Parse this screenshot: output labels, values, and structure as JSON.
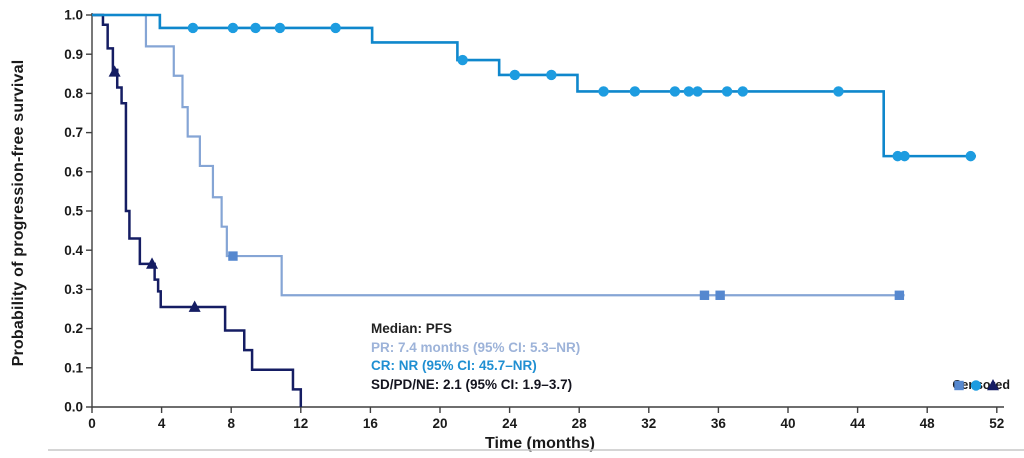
{
  "chart_data": {
    "type": "line",
    "subtype": "kaplan-meier-step",
    "title": "",
    "xlabel": "Time (months)",
    "ylabel": "Probability of progression-free survival",
    "xlim": [
      0,
      52
    ],
    "ylim": [
      0.0,
      1.0
    ],
    "grid": false,
    "xticks": [
      0,
      4,
      8,
      12,
      16,
      20,
      24,
      28,
      32,
      36,
      40,
      44,
      48,
      52
    ],
    "ytick_labels": [
      "0.0",
      "0.1",
      "0.2",
      "0.3",
      "0.4",
      "0.5",
      "0.6",
      "0.7",
      "0.8",
      "0.9",
      "1.0"
    ],
    "axis_color": "#3f3f3f",
    "series": [
      {
        "name": "PR",
        "color": "#85a5d5",
        "marker": "square",
        "marker_color": "#5688cf",
        "line_width": 2.2,
        "steps": [
          [
            0,
            1.0
          ],
          [
            3.1,
            1.0
          ],
          [
            3.1,
            0.92
          ],
          [
            4.7,
            0.92
          ],
          [
            4.7,
            0.845
          ],
          [
            5.2,
            0.845
          ],
          [
            5.2,
            0.765
          ],
          [
            5.5,
            0.765
          ],
          [
            5.5,
            0.69
          ],
          [
            6.2,
            0.69
          ],
          [
            6.2,
            0.615
          ],
          [
            6.95,
            0.615
          ],
          [
            6.95,
            0.535
          ],
          [
            7.45,
            0.535
          ],
          [
            7.45,
            0.46
          ],
          [
            7.75,
            0.46
          ],
          [
            7.75,
            0.385
          ],
          [
            10.9,
            0.385
          ],
          [
            10.9,
            0.285
          ],
          [
            46.7,
            0.285
          ]
        ],
        "censors": [
          [
            8.1,
            0.385
          ],
          [
            35.2,
            0.285
          ],
          [
            36.1,
            0.285
          ],
          [
            46.4,
            0.285
          ]
        ]
      },
      {
        "name": "SD/PD/NE",
        "color": "#151d63",
        "marker": "triangle",
        "marker_color": "#151d63",
        "line_width": 2.5,
        "steps": [
          [
            0,
            1.0
          ],
          [
            0.63,
            1.0
          ],
          [
            0.63,
            0.975
          ],
          [
            0.9,
            0.975
          ],
          [
            0.9,
            0.915
          ],
          [
            1.2,
            0.915
          ],
          [
            1.2,
            0.86
          ],
          [
            1.45,
            0.86
          ],
          [
            1.45,
            0.815
          ],
          [
            1.7,
            0.815
          ],
          [
            1.7,
            0.775
          ],
          [
            1.95,
            0.775
          ],
          [
            1.95,
            0.5
          ],
          [
            2.15,
            0.5
          ],
          [
            2.15,
            0.43
          ],
          [
            2.75,
            0.43
          ],
          [
            2.75,
            0.365
          ],
          [
            3.6,
            0.365
          ],
          [
            3.6,
            0.325
          ],
          [
            3.8,
            0.325
          ],
          [
            3.8,
            0.295
          ],
          [
            3.95,
            0.295
          ],
          [
            3.95,
            0.255
          ],
          [
            7.65,
            0.255
          ],
          [
            7.65,
            0.195
          ],
          [
            8.75,
            0.195
          ],
          [
            8.75,
            0.145
          ],
          [
            9.2,
            0.145
          ],
          [
            9.2,
            0.095
          ],
          [
            11.55,
            0.095
          ],
          [
            11.55,
            0.045
          ],
          [
            12,
            0.045
          ],
          [
            12,
            0.0
          ]
        ],
        "censors": [
          [
            1.3,
            0.855
          ],
          [
            3.45,
            0.365
          ],
          [
            5.9,
            0.255
          ]
        ]
      },
      {
        "name": "CR",
        "color": "#0f87cc",
        "marker": "circle",
        "marker_color": "#1d9ce0",
        "line_width": 2.6,
        "steps": [
          [
            0,
            1.0
          ],
          [
            3.9,
            1.0
          ],
          [
            3.9,
            0.967
          ],
          [
            16.1,
            0.967
          ],
          [
            16.1,
            0.93
          ],
          [
            21.0,
            0.93
          ],
          [
            21.0,
            0.885
          ],
          [
            23.4,
            0.885
          ],
          [
            23.4,
            0.847
          ],
          [
            27.9,
            0.847
          ],
          [
            27.9,
            0.805
          ],
          [
            45.5,
            0.805
          ],
          [
            45.5,
            0.64
          ],
          [
            50.8,
            0.64
          ]
        ],
        "censors": [
          [
            5.8,
            0.967
          ],
          [
            8.1,
            0.967
          ],
          [
            9.4,
            0.967
          ],
          [
            10.8,
            0.967
          ],
          [
            14.0,
            0.967
          ],
          [
            21.3,
            0.885
          ],
          [
            24.3,
            0.847
          ],
          [
            26.4,
            0.847
          ],
          [
            29.4,
            0.805
          ],
          [
            31.2,
            0.805
          ],
          [
            33.5,
            0.805
          ],
          [
            34.3,
            0.805
          ],
          [
            34.8,
            0.805
          ],
          [
            36.5,
            0.805
          ],
          [
            37.4,
            0.805
          ],
          [
            42.9,
            0.805
          ],
          [
            46.3,
            0.64
          ],
          [
            46.7,
            0.64
          ],
          [
            50.5,
            0.64
          ]
        ]
      }
    ],
    "stats_legend": {
      "title": "Median: PFS",
      "title_color": "#222222",
      "entries": [
        {
          "text": "PR: 7.4 months (95% CI: 5.3–NR)",
          "color": "#9db3d9"
        },
        {
          "text": "CR: NR (95% CI: 45.7–NR)",
          "color": "#1f8fd2"
        },
        {
          "text": "SD/PD/NE: 2.1 (95% CI: 1.9–3.7)",
          "color": "#14141f"
        }
      ]
    },
    "censored_legend": {
      "label": "Censored",
      "markers": [
        {
          "shape": "square",
          "color": "#5688cf"
        },
        {
          "shape": "circle",
          "color": "#1d9ce0"
        },
        {
          "shape": "triangle",
          "color": "#151d63"
        }
      ]
    }
  }
}
